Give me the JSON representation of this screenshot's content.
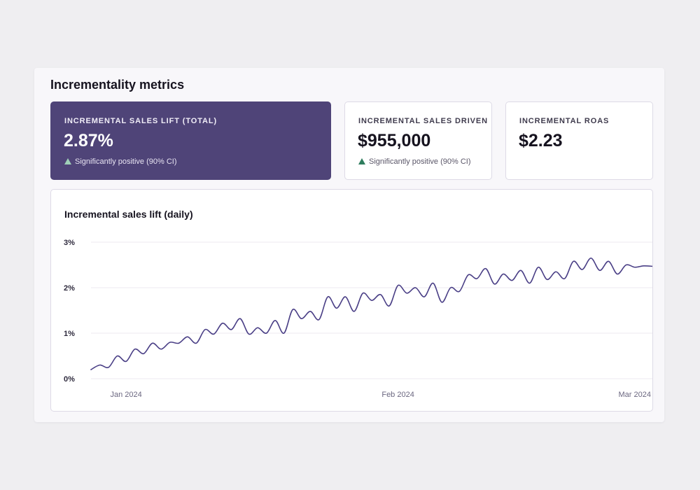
{
  "panel": {
    "title": "Incrementality metrics"
  },
  "cards": [
    {
      "label": "INCREMENTAL SALES LIFT (TOTAL)",
      "value": "2.87%",
      "status": "Significantly positive (90% CI)"
    },
    {
      "label": "INCREMENTAL SALES DRIVEN",
      "value": "$955,000",
      "status": "Significantly positive (90% CI)"
    },
    {
      "label": "INCREMENTAL ROAS",
      "value": "$2.23"
    }
  ],
  "icons": {
    "status": "triangle-up-icon"
  },
  "colors": {
    "primary": "#4f4478",
    "line": "#4a3f86",
    "positive": "#2f7d5e",
    "positive_light": "#9fd0b8"
  },
  "chart_data": {
    "type": "line",
    "title": "Incremental sales lift (daily)",
    "xlabel": "",
    "ylabel": "",
    "ylim": [
      0,
      3
    ],
    "yticks": [
      "0%",
      "1%",
      "2%",
      "3%"
    ],
    "xticks": [
      {
        "label": "Jan 2024",
        "date": "2024-01-01"
      },
      {
        "label": "Feb 2024",
        "date": "2024-02-01"
      },
      {
        "label": "Mar 2024",
        "date": "2024-03-01"
      }
    ],
    "grid": true,
    "x": [
      "2023-12-28",
      "2023-12-29",
      "2023-12-30",
      "2023-12-31",
      "2024-01-01",
      "2024-01-02",
      "2024-01-03",
      "2024-01-04",
      "2024-01-05",
      "2024-01-06",
      "2024-01-07",
      "2024-01-08",
      "2024-01-09",
      "2024-01-10",
      "2024-01-11",
      "2024-01-12",
      "2024-01-13",
      "2024-01-14",
      "2024-01-15",
      "2024-01-16",
      "2024-01-17",
      "2024-01-18",
      "2024-01-19",
      "2024-01-20",
      "2024-01-21",
      "2024-01-22",
      "2024-01-23",
      "2024-01-24",
      "2024-01-25",
      "2024-01-26",
      "2024-01-27",
      "2024-01-28",
      "2024-01-29",
      "2024-01-30",
      "2024-01-31",
      "2024-02-01",
      "2024-02-02",
      "2024-02-03",
      "2024-02-04",
      "2024-02-05",
      "2024-02-06",
      "2024-02-07",
      "2024-02-08",
      "2024-02-09",
      "2024-02-10",
      "2024-02-11",
      "2024-02-12",
      "2024-02-13",
      "2024-02-14",
      "2024-02-15",
      "2024-02-16",
      "2024-02-17",
      "2024-02-18",
      "2024-02-19",
      "2024-02-20",
      "2024-02-21",
      "2024-02-22",
      "2024-02-23",
      "2024-02-24",
      "2024-02-25",
      "2024-02-26",
      "2024-02-27",
      "2024-02-28",
      "2024-02-29",
      "2024-03-01"
    ],
    "series": [
      {
        "values": [
          0.2,
          0.3,
          0.25,
          0.5,
          0.38,
          0.65,
          0.55,
          0.78,
          0.65,
          0.8,
          0.78,
          0.92,
          0.78,
          1.08,
          0.98,
          1.22,
          1.08,
          1.32,
          0.98,
          1.12,
          1.0,
          1.28,
          1.0,
          1.52,
          1.32,
          1.48,
          1.3,
          1.8,
          1.55,
          1.8,
          1.48,
          1.88,
          1.72,
          1.85,
          1.6,
          2.05,
          1.88,
          2.0,
          1.8,
          2.1,
          1.68,
          2.0,
          1.92,
          2.28,
          2.2,
          2.42,
          2.08,
          2.3,
          2.16,
          2.38,
          2.1,
          2.45,
          2.18,
          2.35,
          2.2,
          2.58,
          2.4,
          2.65,
          2.38,
          2.58,
          2.3,
          2.5,
          2.45,
          2.48,
          2.47
        ]
      }
    ]
  }
}
